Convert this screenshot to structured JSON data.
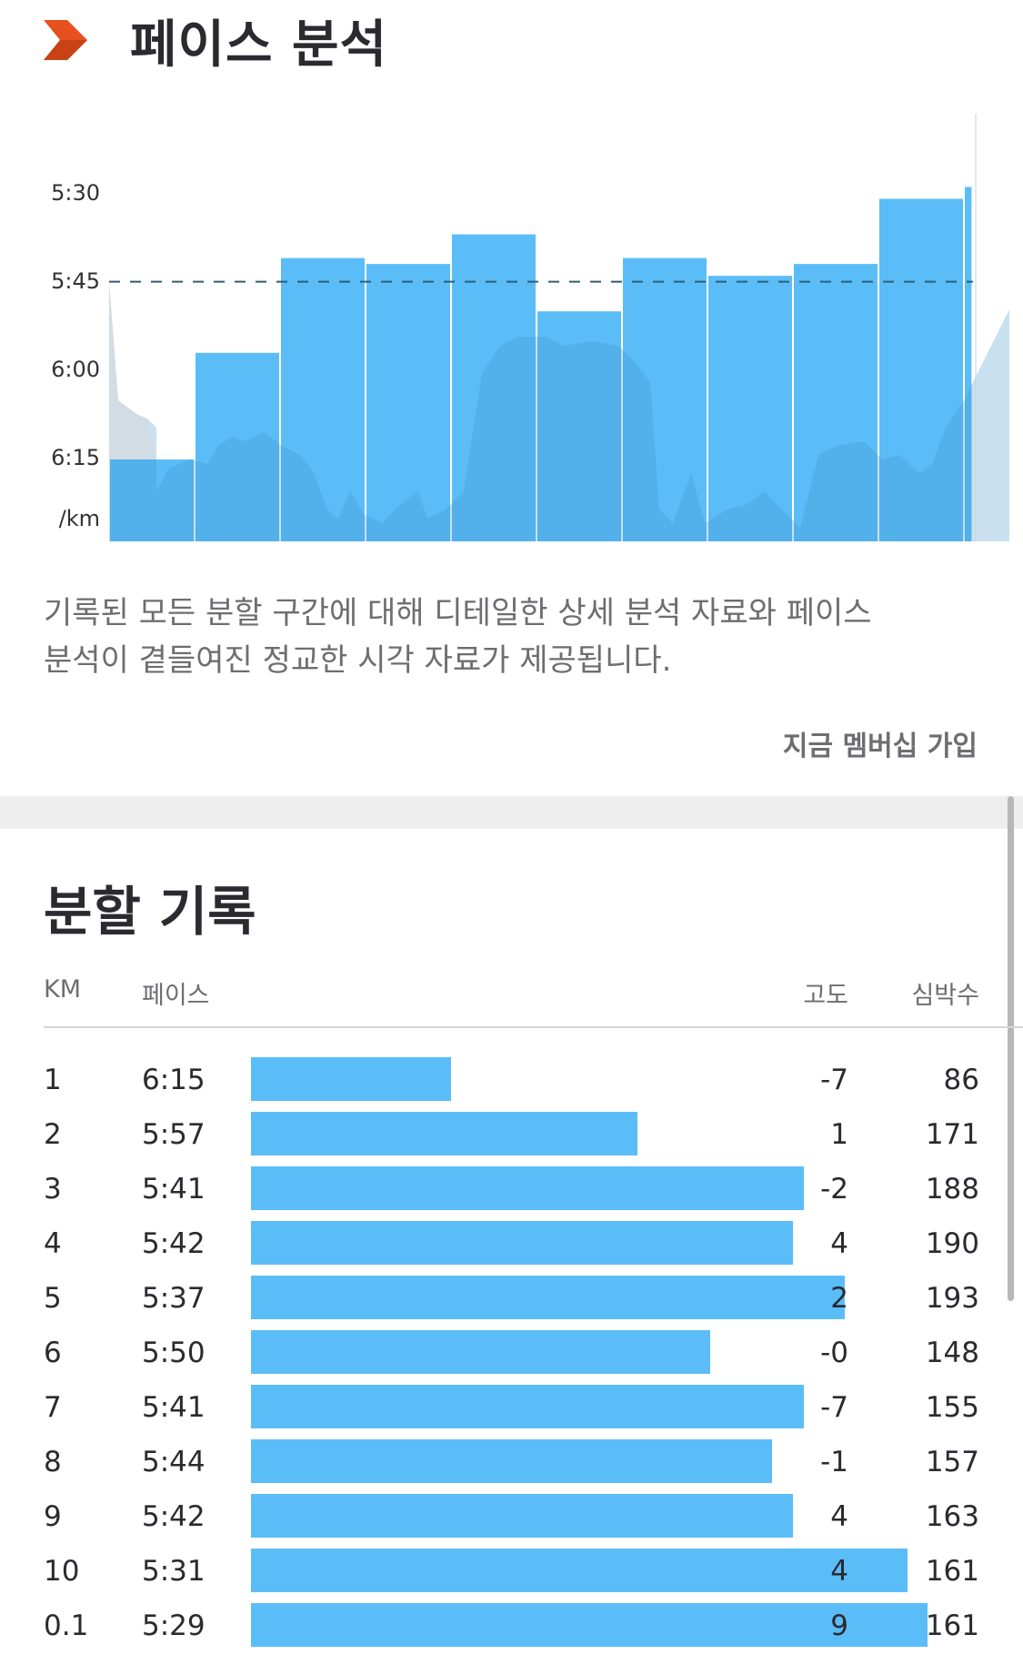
{
  "pace_section": {
    "title": "페이스 분석",
    "description_line1": "기록된 모든 분할 구간에 대해 디테일한 상세 분석 자료와 페이스",
    "description_line2": "분석이 곁들여진 정교한 시각 자료가 제공됩니다.",
    "membership_link": "지금 멤버십 가입",
    "accent_color": "#e6511f",
    "bar_color": "#5bbdf7"
  },
  "chart_data": {
    "type": "bar",
    "y_tick_labels": [
      "5:30",
      "5:45",
      "6:00",
      "6:15"
    ],
    "y_unit_label": "/km",
    "y_axis_inverted": true,
    "target_pace_line": "5:45",
    "categories": [
      "1",
      "2",
      "3",
      "4",
      "5",
      "6",
      "7",
      "8",
      "9",
      "10",
      "0.1"
    ],
    "values": [
      "6:15",
      "5:57",
      "5:41",
      "5:42",
      "5:37",
      "5:50",
      "5:41",
      "5:44",
      "5:42",
      "5:31",
      "5:29"
    ],
    "widths_km": [
      1,
      1,
      1,
      1,
      1,
      1,
      1,
      1,
      1,
      1,
      0.1
    ],
    "grid": false,
    "legend": "none"
  },
  "splits": {
    "title": "분할 기록",
    "headers": {
      "km": "KM",
      "pace": "페이스",
      "elevation": "고도",
      "heart_rate": "심박수"
    },
    "rows": [
      {
        "km": "1",
        "pace": "6:15",
        "elevation": "-7",
        "heart_rate": "86"
      },
      {
        "km": "2",
        "pace": "5:57",
        "elevation": "1",
        "heart_rate": "171"
      },
      {
        "km": "3",
        "pace": "5:41",
        "elevation": "-2",
        "heart_rate": "188"
      },
      {
        "km": "4",
        "pace": "5:42",
        "elevation": "4",
        "heart_rate": "190"
      },
      {
        "km": "5",
        "pace": "5:37",
        "elevation": "2",
        "heart_rate": "193"
      },
      {
        "km": "6",
        "pace": "5:50",
        "elevation": "-0",
        "heart_rate": "148"
      },
      {
        "km": "7",
        "pace": "5:41",
        "elevation": "-7",
        "heart_rate": "155"
      },
      {
        "km": "8",
        "pace": "5:44",
        "elevation": "-1",
        "heart_rate": "157"
      },
      {
        "km": "9",
        "pace": "5:42",
        "elevation": "4",
        "heart_rate": "163"
      },
      {
        "km": "10",
        "pace": "5:31",
        "elevation": "4",
        "heart_rate": "161"
      },
      {
        "km": "0.1",
        "pace": "5:29",
        "elevation": "9",
        "heart_rate": "161"
      }
    ]
  }
}
